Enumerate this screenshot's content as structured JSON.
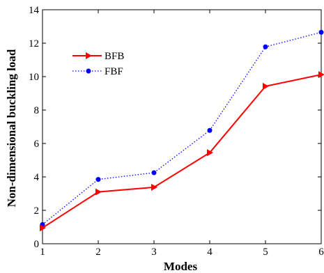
{
  "chart_data": {
    "type": "line",
    "title": "",
    "xlabel": "Modes",
    "ylabel": "Non-dimensional buckling load",
    "x": [
      1,
      2,
      3,
      4,
      5,
      6
    ],
    "xlim": [
      1,
      6
    ],
    "ylim": [
      0,
      14
    ],
    "xticks": [
      "1",
      "2",
      "3",
      "4",
      "5",
      "6"
    ],
    "yticks": [
      "0",
      "2",
      "4",
      "6",
      "8",
      "10",
      "12",
      "14"
    ],
    "grid": false,
    "legend_position": "upper-left",
    "series": [
      {
        "name": "BFB",
        "values": [
          0.95,
          3.1,
          3.38,
          5.45,
          9.42,
          10.12
        ],
        "color": "#ff0000",
        "line_style": "solid",
        "marker": "triangle-right"
      },
      {
        "name": "FBF",
        "values": [
          1.15,
          3.85,
          4.25,
          6.78,
          11.78,
          12.65
        ],
        "color": "#0000ff",
        "line_style": "dotted",
        "marker": "circle"
      }
    ]
  }
}
